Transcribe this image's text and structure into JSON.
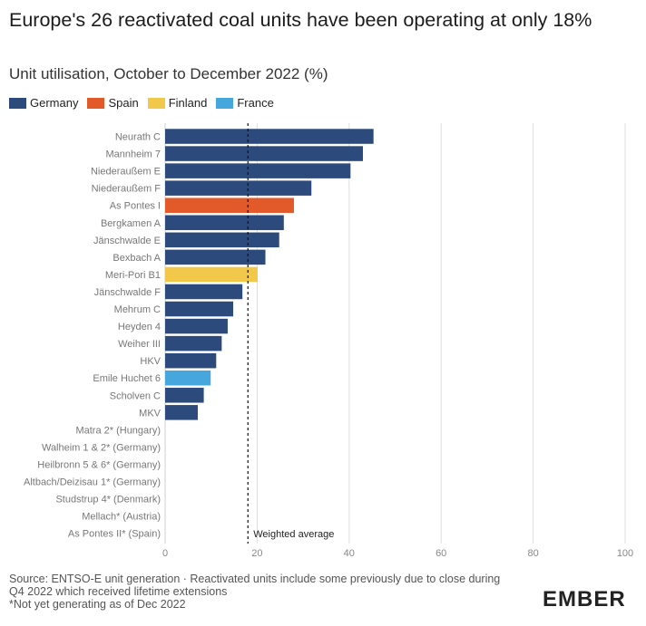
{
  "title": "Europe's 26 reactivated coal units have been operating at only 18%",
  "subtitle": "Unit utilisation, October to December 2022 (%)",
  "legend": [
    {
      "label": "Germany",
      "color": "#2c4a7c"
    },
    {
      "label": "Spain",
      "color": "#e2592a"
    },
    {
      "label": "Finland",
      "color": "#f2c84b"
    },
    {
      "label": "France",
      "color": "#46a7dc"
    }
  ],
  "chart_data": {
    "type": "bar",
    "orientation": "horizontal",
    "title": "Europe's 26 reactivated coal units have been operating at only 18%",
    "xlabel": "",
    "ylabel": "",
    "xlim": [
      0,
      100
    ],
    "xticks": [
      0,
      20,
      40,
      60,
      80,
      100
    ],
    "grid": true,
    "legend_position": "top-left",
    "categories": [
      "Neurath C",
      "Mannheim 7",
      "Niederaußem E",
      "Niederaußem F",
      "As Pontes I",
      "Bergkamen A",
      "Jänschwalde E",
      "Bexbach A",
      "Meri-Pori B1",
      "Jänschwalde F",
      "Mehrum C",
      "Heyden 4",
      "Weiher III",
      "HKV",
      "Emile Huchet 6",
      "Scholven C",
      "MKV",
      "Matra 2* (Hungary)",
      "Walheim 1 & 2* (Germany)",
      "Heilbronn 5 & 6* (Germany)",
      "Altbach/Deizisau 1* (Germany)",
      "Studstrup 4* (Denmark)",
      "Mellach* (Austria)",
      "As Pontes II* (Spain)"
    ],
    "values": [
      45.3,
      43,
      40.3,
      31.8,
      28,
      25.8,
      24.8,
      21.8,
      20.1,
      16.8,
      14.8,
      13.6,
      12.3,
      11.1,
      9.9,
      8.4,
      7.1,
      0,
      0,
      0,
      0,
      0,
      0,
      0
    ],
    "countries": [
      "Germany",
      "Germany",
      "Germany",
      "Germany",
      "Spain",
      "Germany",
      "Germany",
      "Germany",
      "Finland",
      "Germany",
      "Germany",
      "Germany",
      "Germany",
      "Germany",
      "France",
      "Germany",
      "Germany",
      "Hungary",
      "Germany",
      "Germany",
      "Germany",
      "Denmark",
      "Austria",
      "Spain"
    ],
    "colors": {
      "Germany": "#2c4a7c",
      "Spain": "#e2592a",
      "Finland": "#f2c84b",
      "France": "#46a7dc"
    },
    "reference_line": {
      "label": "Weighted average",
      "value": 18
    }
  },
  "source_note": "Source: ENTSO-E unit generation · Reactivated units include some previously due to close during Q4 2022 which received lifetime extensions",
  "footnote": "*Not yet generating as of Dec 2022",
  "brand": "EMBER"
}
